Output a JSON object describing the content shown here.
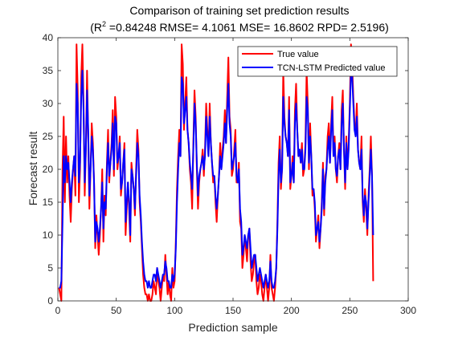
{
  "chart_data": {
    "type": "line",
    "title": "Comparison of training set prediction results",
    "subtitle_prefix": "(R",
    "subtitle_sup": "2",
    "subtitle_rest": " =0.84248 RMSE= 4.1061 MSE= 16.8602 RPD= 2.5196)",
    "xlabel": "Prediction sample",
    "ylabel": "Forecast result",
    "xlim": [
      0,
      300
    ],
    "ylim": [
      0,
      40
    ],
    "xticks": [
      0,
      50,
      100,
      150,
      200,
      250,
      300
    ],
    "yticks": [
      0,
      5,
      10,
      15,
      20,
      25,
      30,
      35,
      40
    ],
    "grid": false,
    "legend_position": "top-right",
    "series": [
      {
        "name": "True value",
        "color": "#ff0000",
        "values": [
          2,
          1,
          0,
          20,
          28,
          15,
          25,
          18,
          22,
          16,
          12,
          17,
          20,
          22,
          16,
          39,
          32,
          15,
          20,
          34,
          39,
          30,
          16,
          23,
          35,
          25,
          14,
          20,
          27,
          24,
          18,
          8,
          13,
          10,
          7,
          10,
          14,
          20,
          9,
          16,
          13,
          21,
          26,
          18,
          21,
          24,
          29,
          19,
          31,
          28,
          20,
          22,
          25,
          16,
          18,
          21,
          24,
          10,
          14,
          18,
          14,
          9,
          21,
          19,
          17,
          13,
          20,
          26,
          23,
          15,
          12,
          8,
          4,
          2,
          1,
          1,
          0,
          1,
          0,
          0,
          1,
          3,
          2,
          1,
          5,
          3,
          2,
          0,
          2,
          4,
          3,
          7,
          4,
          1,
          3,
          1,
          0,
          5,
          2,
          3,
          9,
          17,
          22,
          26,
          22,
          39,
          36,
          26,
          30,
          34,
          26,
          24,
          20,
          18,
          14,
          24,
          32,
          28,
          20,
          14,
          18,
          20,
          21,
          23,
          19,
          23,
          30,
          26,
          22,
          30,
          24,
          21,
          18,
          19,
          15,
          12,
          16,
          19,
          24,
          20,
          23,
          25,
          29,
          24,
          31,
          37,
          28,
          26,
          19,
          20,
          23,
          26,
          18,
          18,
          21,
          12,
          11,
          5,
          7,
          10,
          8,
          6,
          10,
          11,
          6,
          3,
          4,
          6,
          7,
          3,
          1,
          2,
          4,
          3,
          1,
          0,
          2,
          4,
          2,
          0,
          2,
          7,
          2,
          1,
          0,
          2,
          5,
          12,
          21,
          25,
          17,
          20,
          35,
          28,
          25,
          24,
          22,
          31,
          17,
          19,
          22,
          18,
          29,
          33,
          26,
          22,
          23,
          21,
          24,
          19,
          20,
          24,
          35,
          30,
          20,
          27,
          22,
          16,
          17,
          14,
          9,
          11,
          13,
          8,
          11,
          15,
          21,
          13,
          19,
          20,
          25,
          27,
          21,
          27,
          31,
          22,
          25,
          20,
          18,
          22,
          24,
          20,
          29,
          32,
          23,
          17,
          25,
          20,
          24,
          30,
          39,
          36,
          31,
          27,
          25,
          30,
          23,
          21,
          20,
          25,
          15,
          12,
          17,
          14,
          10,
          16,
          20,
          25,
          19,
          3
        ],
        "x": [
          1,
          2,
          3,
          4,
          5,
          6,
          7,
          8,
          9,
          10,
          11,
          12,
          13,
          14,
          15,
          16,
          17,
          18,
          19,
          20,
          21,
          22,
          23,
          24,
          25,
          26,
          27,
          28,
          29,
          30,
          31,
          32,
          33,
          34,
          35,
          36,
          37,
          38,
          39,
          40,
          41,
          42,
          43,
          44,
          45,
          46,
          47,
          48,
          49,
          50,
          51,
          52,
          53,
          54,
          55,
          56,
          57,
          58,
          59,
          60,
          61,
          62,
          63,
          64,
          65,
          66,
          67,
          68,
          69,
          70,
          71,
          72,
          73,
          74,
          75,
          76,
          77,
          78,
          79,
          80,
          81,
          82,
          83,
          84,
          85,
          86,
          87,
          88,
          89,
          90,
          91,
          92,
          93,
          94,
          95,
          96,
          97,
          98,
          99,
          100,
          101,
          102,
          103,
          104,
          105,
          106,
          107,
          108,
          109,
          110,
          111,
          112,
          113,
          114,
          115,
          116,
          117,
          118,
          119,
          120,
          121,
          122,
          123,
          124,
          125,
          126,
          127,
          128,
          129,
          130,
          131,
          132,
          133,
          134,
          135,
          136,
          137,
          138,
          139,
          140,
          141,
          142,
          143,
          144,
          145,
          146,
          147,
          148,
          149,
          150,
          151,
          152,
          153,
          154,
          155,
          156,
          157,
          158,
          159,
          160,
          161,
          162,
          163,
          164,
          165,
          166,
          167,
          168,
          169,
          170,
          171,
          172,
          173,
          174,
          175,
          176,
          177,
          178,
          179,
          180,
          181,
          182,
          183,
          184,
          185,
          186,
          187,
          188,
          189,
          190,
          191,
          192,
          193,
          194,
          195,
          196,
          197,
          198,
          199,
          200,
          201,
          202,
          203,
          204,
          205,
          206,
          207,
          208,
          209,
          210,
          211,
          212,
          213,
          214,
          215,
          216,
          217,
          218,
          219,
          220,
          221,
          222,
          223,
          224,
          225,
          226,
          227,
          228,
          229,
          230,
          231,
          232,
          233,
          234,
          235,
          236,
          237,
          238,
          239,
          240,
          241,
          242,
          243,
          244,
          245,
          246,
          247,
          248,
          249,
          250,
          251,
          252,
          253,
          254,
          255,
          256,
          257,
          258,
          259,
          260,
          261,
          262,
          263,
          264,
          265,
          266,
          267,
          268,
          269,
          270
        ]
      },
      {
        "name": "TCN-LSTM Predicted value",
        "color": "#0000ff",
        "values": [
          2,
          2,
          3,
          12,
          22,
          18,
          22,
          20,
          21,
          18,
          15,
          18,
          20,
          22,
          19,
          33,
          30,
          18,
          21,
          31,
          35,
          29,
          18,
          23,
          32,
          26,
          16,
          20,
          25,
          23,
          18,
          9,
          12,
          11,
          9,
          11,
          14,
          18,
          11,
          15,
          14,
          20,
          24,
          19,
          21,
          23,
          27,
          20,
          28,
          27,
          21,
          22,
          24,
          17,
          18,
          21,
          23,
          12,
          15,
          18,
          15,
          10,
          20,
          19,
          17,
          14,
          19,
          24,
          22,
          16,
          13,
          9,
          6,
          4,
          3,
          3,
          2,
          3,
          2,
          2,
          3,
          4,
          4,
          3,
          5,
          4,
          3,
          2,
          3,
          4,
          4,
          6,
          5,
          3,
          3,
          2,
          2,
          4,
          3,
          4,
          8,
          15,
          20,
          24,
          22,
          34,
          33,
          27,
          29,
          31,
          26,
          24,
          21,
          19,
          17,
          23,
          30,
          27,
          21,
          16,
          19,
          20,
          21,
          22,
          20,
          22,
          28,
          25,
          22,
          28,
          24,
          21,
          19,
          19,
          16,
          14,
          16,
          19,
          22,
          20,
          22,
          24,
          27,
          24,
          29,
          33,
          27,
          25,
          20,
          21,
          22,
          24,
          19,
          18,
          20,
          14,
          12,
          7,
          8,
          10,
          9,
          8,
          10,
          11,
          8,
          5,
          6,
          7,
          7,
          5,
          3,
          4,
          5,
          4,
          3,
          2,
          3,
          4,
          3,
          2,
          3,
          6,
          3,
          2,
          2,
          3,
          5,
          11,
          19,
          23,
          18,
          20,
          31,
          27,
          25,
          24,
          22,
          29,
          18,
          19,
          21,
          18,
          27,
          30,
          26,
          22,
          23,
          21,
          23,
          20,
          20,
          23,
          31,
          29,
          21,
          25,
          22,
          17,
          17,
          15,
          10,
          11,
          12,
          9,
          11,
          14,
          20,
          14,
          18,
          20,
          23,
          25,
          21,
          26,
          29,
          22,
          24,
          20,
          19,
          22,
          23,
          20,
          27,
          30,
          23,
          18,
          24,
          20,
          23,
          29,
          35,
          34,
          30,
          26,
          25,
          28,
          23,
          21,
          20,
          23,
          16,
          13,
          16,
          15,
          11,
          15,
          19,
          23,
          19,
          10
        ],
        "x": [
          1,
          2,
          3,
          4,
          5,
          6,
          7,
          8,
          9,
          10,
          11,
          12,
          13,
          14,
          15,
          16,
          17,
          18,
          19,
          20,
          21,
          22,
          23,
          24,
          25,
          26,
          27,
          28,
          29,
          30,
          31,
          32,
          33,
          34,
          35,
          36,
          37,
          38,
          39,
          40,
          41,
          42,
          43,
          44,
          45,
          46,
          47,
          48,
          49,
          50,
          51,
          52,
          53,
          54,
          55,
          56,
          57,
          58,
          59,
          60,
          61,
          62,
          63,
          64,
          65,
          66,
          67,
          68,
          69,
          70,
          71,
          72,
          73,
          74,
          75,
          76,
          77,
          78,
          79,
          80,
          81,
          82,
          83,
          84,
          85,
          86,
          87,
          88,
          89,
          90,
          91,
          92,
          93,
          94,
          95,
          96,
          97,
          98,
          99,
          100,
          101,
          102,
          103,
          104,
          105,
          106,
          107,
          108,
          109,
          110,
          111,
          112,
          113,
          114,
          115,
          116,
          117,
          118,
          119,
          120,
          121,
          122,
          123,
          124,
          125,
          126,
          127,
          128,
          129,
          130,
          131,
          132,
          133,
          134,
          135,
          136,
          137,
          138,
          139,
          140,
          141,
          142,
          143,
          144,
          145,
          146,
          147,
          148,
          149,
          150,
          151,
          152,
          153,
          154,
          155,
          156,
          157,
          158,
          159,
          160,
          161,
          162,
          163,
          164,
          165,
          166,
          167,
          168,
          169,
          170,
          171,
          172,
          173,
          174,
          175,
          176,
          177,
          178,
          179,
          180,
          181,
          182,
          183,
          184,
          185,
          186,
          187,
          188,
          189,
          190,
          191,
          192,
          193,
          194,
          195,
          196,
          197,
          198,
          199,
          200,
          201,
          202,
          203,
          204,
          205,
          206,
          207,
          208,
          209,
          210,
          211,
          212,
          213,
          214,
          215,
          216,
          217,
          218,
          219,
          220,
          221,
          222,
          223,
          224,
          225,
          226,
          227,
          228,
          229,
          230,
          231,
          232,
          233,
          234,
          235,
          236,
          237,
          238,
          239,
          240,
          241,
          242,
          243,
          244,
          245,
          246,
          247,
          248,
          249,
          250,
          251,
          252,
          253,
          254,
          255,
          256,
          257,
          258,
          259,
          260,
          261,
          262,
          263,
          264,
          265,
          266,
          267,
          268,
          269,
          270
        ]
      }
    ]
  }
}
